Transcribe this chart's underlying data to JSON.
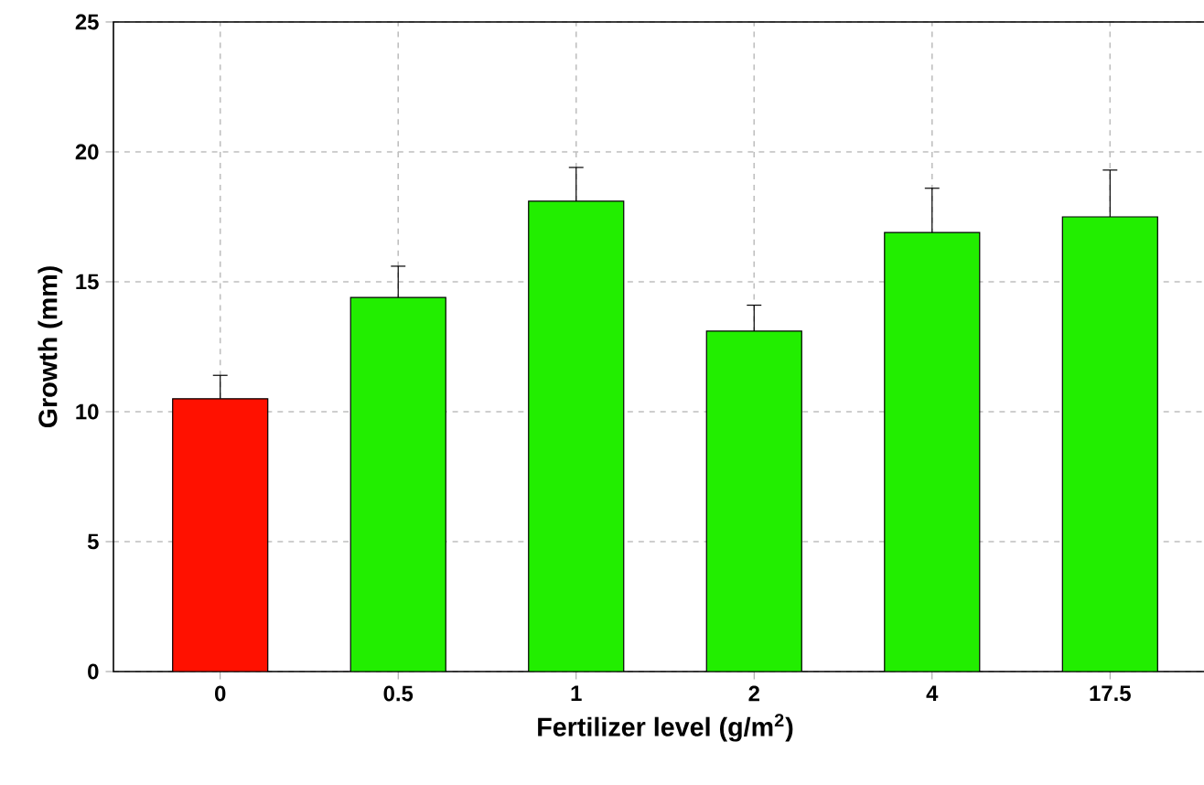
{
  "chart_data": {
    "type": "bar",
    "xlabel": "Fertilizer level (g/m$^{2}$)",
    "ylabel": "Growth (mm)",
    "categories": [
      "0",
      "0.5",
      "1",
      "2",
      "4",
      "17.5"
    ],
    "values": [
      10.5,
      14.4,
      18.1,
      13.1,
      16.9,
      17.5
    ],
    "errors": [
      [
        10.5,
        11.4
      ],
      [
        14.4,
        15.6
      ],
      [
        18.1,
        19.4
      ],
      [
        13.1,
        14.1
      ],
      [
        16.9,
        18.6
      ],
      [
        17.5,
        19.3
      ]
    ],
    "colors": [
      "#ff1100",
      "#22ee00",
      "#22ee00",
      "#22ee00",
      "#22ee00",
      "#22ee00"
    ],
    "ylim": [
      0,
      25
    ],
    "yticks": [
      0,
      5,
      10,
      15,
      20,
      25
    ],
    "grid": true
  }
}
